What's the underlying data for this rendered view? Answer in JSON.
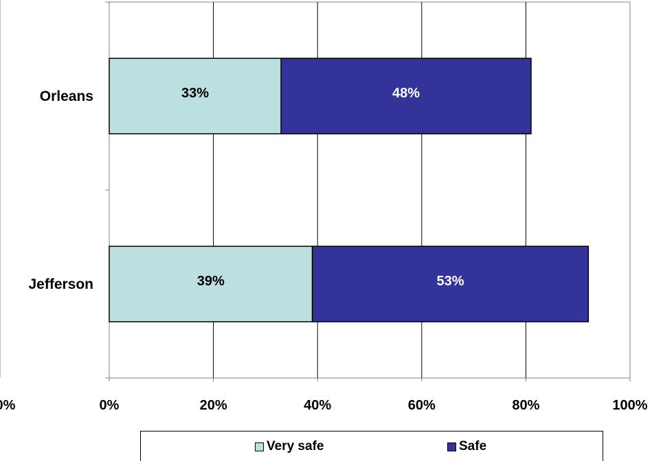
{
  "chart_data": {
    "type": "bar",
    "orientation": "horizontal",
    "stacked": true,
    "categories": [
      "Orleans",
      "Jefferson"
    ],
    "series": [
      {
        "name": "Very safe",
        "values": [
          33,
          39
        ],
        "labels": [
          "33%",
          "39%"
        ],
        "color": "#BCE0E0",
        "label_color": "#000000"
      },
      {
        "name": "Safe",
        "values": [
          48,
          53
        ],
        "labels": [
          "48%",
          "53%"
        ],
        "color": "#333399",
        "label_color": "#FFFFFF"
      }
    ],
    "xlim": [
      0,
      100
    ],
    "xticks": [
      "0%",
      "20%",
      "40%",
      "60%",
      "80%",
      "100%"
    ],
    "left_axis_tick": "0%",
    "grid": "vertical",
    "legend_position": "bottom",
    "title": "",
    "xlabel": "",
    "ylabel": ""
  }
}
